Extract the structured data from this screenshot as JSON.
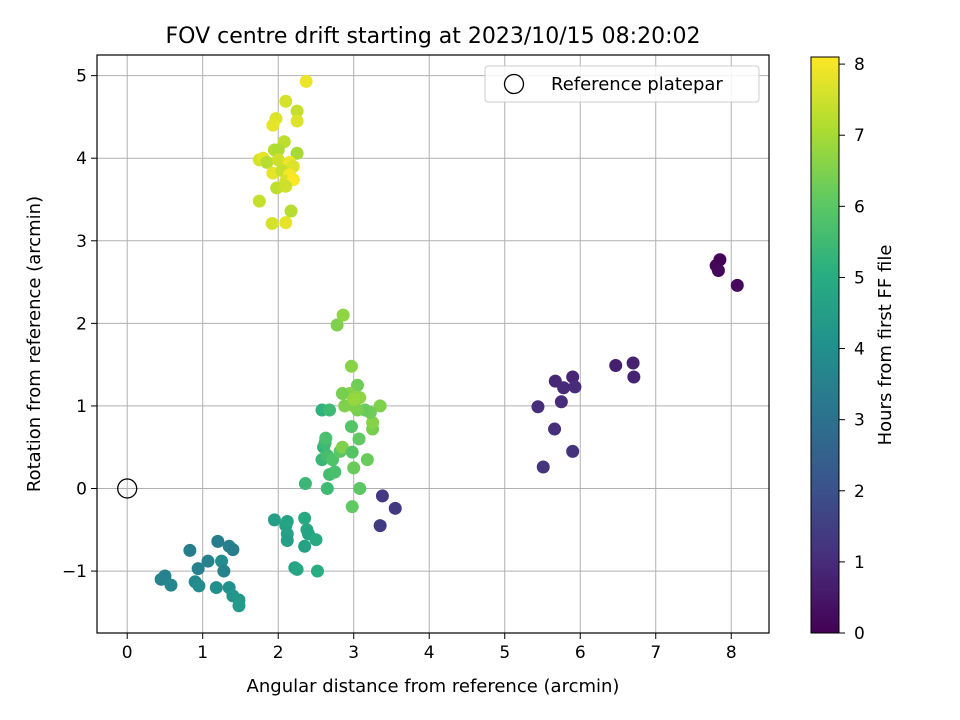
{
  "chart_data": {
    "type": "scatter",
    "title": "FOV centre drift starting at 2023/10/15 08:20:02",
    "xlabel": "Angular distance from reference (arcmin)",
    "ylabel": "Rotation from reference (arcmin)",
    "xlim": [
      -0.4,
      8.5
    ],
    "ylim": [
      -1.75,
      5.25
    ],
    "xticks": [
      0,
      1,
      2,
      3,
      4,
      5,
      6,
      7,
      8
    ],
    "yticks": [
      -1,
      0,
      1,
      2,
      3,
      4,
      5
    ],
    "grid": true,
    "legend": {
      "placement": "top-right",
      "entries": [
        "Reference platepar"
      ]
    },
    "reference_point": {
      "x": 0,
      "y": 0
    },
    "colorbar": {
      "label": "Hours from first FF file",
      "range": [
        0,
        8.1
      ],
      "ticks": [
        0,
        1,
        2,
        3,
        4,
        5,
        6,
        7,
        8
      ],
      "colormap": "viridis"
    },
    "points": [
      {
        "x": 7.85,
        "y": 2.77,
        "c": 0.05
      },
      {
        "x": 7.8,
        "y": 2.7,
        "c": 0.1
      },
      {
        "x": 7.83,
        "y": 2.64,
        "c": 0.15
      },
      {
        "x": 8.08,
        "y": 2.46,
        "c": 0.2
      },
      {
        "x": 6.47,
        "y": 1.49,
        "c": 0.7
      },
      {
        "x": 6.7,
        "y": 1.52,
        "c": 0.75
      },
      {
        "x": 6.71,
        "y": 1.35,
        "c": 0.8
      },
      {
        "x": 5.9,
        "y": 1.35,
        "c": 0.85
      },
      {
        "x": 5.67,
        "y": 1.3,
        "c": 0.9
      },
      {
        "x": 5.78,
        "y": 1.22,
        "c": 0.95
      },
      {
        "x": 5.93,
        "y": 1.23,
        "c": 1.0
      },
      {
        "x": 5.75,
        "y": 1.05,
        "c": 1.0
      },
      {
        "x": 5.44,
        "y": 0.99,
        "c": 1.05
      },
      {
        "x": 5.66,
        "y": 0.72,
        "c": 1.1
      },
      {
        "x": 5.9,
        "y": 0.45,
        "c": 1.15
      },
      {
        "x": 5.51,
        "y": 0.26,
        "c": 1.2
      },
      {
        "x": 3.38,
        "y": -0.09,
        "c": 1.3
      },
      {
        "x": 3.55,
        "y": -0.24,
        "c": 1.35
      },
      {
        "x": 3.35,
        "y": -0.45,
        "c": 1.4
      },
      {
        "x": 0.45,
        "y": -1.1,
        "c": 3.6
      },
      {
        "x": 0.5,
        "y": -1.06,
        "c": 3.6
      },
      {
        "x": 0.58,
        "y": -1.17,
        "c": 3.7
      },
      {
        "x": 0.83,
        "y": -0.75,
        "c": 3.4
      },
      {
        "x": 0.94,
        "y": -0.97,
        "c": 3.5
      },
      {
        "x": 0.9,
        "y": -1.13,
        "c": 3.8
      },
      {
        "x": 0.95,
        "y": -1.18,
        "c": 3.9
      },
      {
        "x": 1.07,
        "y": -0.88,
        "c": 3.6
      },
      {
        "x": 1.2,
        "y": -0.64,
        "c": 3.4
      },
      {
        "x": 1.25,
        "y": -0.88,
        "c": 3.9
      },
      {
        "x": 1.28,
        "y": -1.0,
        "c": 3.6
      },
      {
        "x": 1.18,
        "y": -1.2,
        "c": 4.0
      },
      {
        "x": 1.35,
        "y": -0.7,
        "c": 3.5
      },
      {
        "x": 1.4,
        "y": -0.74,
        "c": 3.4
      },
      {
        "x": 1.35,
        "y": -1.2,
        "c": 4.1
      },
      {
        "x": 1.4,
        "y": -1.3,
        "c": 4.2
      },
      {
        "x": 1.48,
        "y": -1.35,
        "c": 4.3
      },
      {
        "x": 1.48,
        "y": -1.42,
        "c": 4.4
      },
      {
        "x": 1.95,
        "y": -0.38,
        "c": 4.5
      },
      {
        "x": 2.1,
        "y": -0.45,
        "c": 4.6
      },
      {
        "x": 2.12,
        "y": -0.4,
        "c": 4.7
      },
      {
        "x": 2.12,
        "y": -0.55,
        "c": 4.6
      },
      {
        "x": 2.12,
        "y": -0.63,
        "c": 4.5
      },
      {
        "x": 2.35,
        "y": -0.36,
        "c": 4.9
      },
      {
        "x": 2.38,
        "y": -0.5,
        "c": 4.8
      },
      {
        "x": 2.4,
        "y": -0.55,
        "c": 4.7
      },
      {
        "x": 2.5,
        "y": -0.62,
        "c": 4.9
      },
      {
        "x": 2.35,
        "y": -0.7,
        "c": 4.6
      },
      {
        "x": 2.22,
        "y": -0.96,
        "c": 4.6
      },
      {
        "x": 2.25,
        "y": -0.98,
        "c": 4.8
      },
      {
        "x": 2.52,
        "y": -1.0,
        "c": 5.0
      },
      {
        "x": 2.36,
        "y": 0.06,
        "c": 5.4
      },
      {
        "x": 2.58,
        "y": 0.95,
        "c": 5.2
      },
      {
        "x": 2.68,
        "y": 0.95,
        "c": 5.5
      },
      {
        "x": 2.6,
        "y": 0.5,
        "c": 5.3
      },
      {
        "x": 2.62,
        "y": 0.55,
        "c": 5.5
      },
      {
        "x": 2.63,
        "y": 0.61,
        "c": 5.7
      },
      {
        "x": 2.58,
        "y": 0.35,
        "c": 5.4
      },
      {
        "x": 2.65,
        "y": 0.4,
        "c": 5.6
      },
      {
        "x": 2.72,
        "y": 0.35,
        "c": 5.8
      },
      {
        "x": 2.68,
        "y": 0.17,
        "c": 5.6
      },
      {
        "x": 2.75,
        "y": 0.2,
        "c": 5.7
      },
      {
        "x": 2.65,
        "y": 0.0,
        "c": 5.5
      },
      {
        "x": 2.82,
        "y": 0.45,
        "c": 6.0
      },
      {
        "x": 2.85,
        "y": 0.5,
        "c": 6.5
      },
      {
        "x": 2.98,
        "y": 0.44,
        "c": 5.9
      },
      {
        "x": 3.0,
        "y": 0.25,
        "c": 6.2
      },
      {
        "x": 3.08,
        "y": 0.0,
        "c": 6.0
      },
      {
        "x": 2.98,
        "y": -0.22,
        "c": 6.1
      },
      {
        "x": 2.97,
        "y": 0.75,
        "c": 5.9
      },
      {
        "x": 3.07,
        "y": 0.6,
        "c": 6.1
      },
      {
        "x": 3.18,
        "y": 0.35,
        "c": 6.2
      },
      {
        "x": 3.25,
        "y": 0.72,
        "c": 6.4
      },
      {
        "x": 3.25,
        "y": 0.8,
        "c": 6.6
      },
      {
        "x": 3.35,
        "y": 1.0,
        "c": 6.5
      },
      {
        "x": 3.22,
        "y": 0.92,
        "c": 6.3
      },
      {
        "x": 3.15,
        "y": 0.95,
        "c": 6.2
      },
      {
        "x": 3.05,
        "y": 0.95,
        "c": 6.4
      },
      {
        "x": 3.0,
        "y": 1.0,
        "c": 6.5
      },
      {
        "x": 3.08,
        "y": 1.1,
        "c": 6.7
      },
      {
        "x": 3.05,
        "y": 1.25,
        "c": 6.3
      },
      {
        "x": 2.95,
        "y": 1.15,
        "c": 6.6
      },
      {
        "x": 2.88,
        "y": 1.0,
        "c": 6.5
      },
      {
        "x": 2.85,
        "y": 1.15,
        "c": 6.4
      },
      {
        "x": 3.0,
        "y": 1.08,
        "c": 6.8
      },
      {
        "x": 2.97,
        "y": 1.48,
        "c": 6.6
      },
      {
        "x": 2.78,
        "y": 1.98,
        "c": 6.5
      },
      {
        "x": 2.86,
        "y": 2.1,
        "c": 6.7
      },
      {
        "x": 2.37,
        "y": 4.93,
        "c": 7.9
      },
      {
        "x": 2.1,
        "y": 4.69,
        "c": 7.6
      },
      {
        "x": 2.25,
        "y": 4.57,
        "c": 7.4
      },
      {
        "x": 1.97,
        "y": 4.48,
        "c": 7.7
      },
      {
        "x": 1.93,
        "y": 4.4,
        "c": 7.8
      },
      {
        "x": 2.25,
        "y": 4.45,
        "c": 7.7
      },
      {
        "x": 2.08,
        "y": 4.2,
        "c": 7.3
      },
      {
        "x": 1.95,
        "y": 4.1,
        "c": 7.2
      },
      {
        "x": 2.0,
        "y": 4.1,
        "c": 7.1
      },
      {
        "x": 2.25,
        "y": 4.06,
        "c": 7.0
      },
      {
        "x": 1.75,
        "y": 3.98,
        "c": 7.6
      },
      {
        "x": 1.8,
        "y": 4.0,
        "c": 7.8
      },
      {
        "x": 1.85,
        "y": 3.95,
        "c": 7.2
      },
      {
        "x": 2.0,
        "y": 3.98,
        "c": 7.5
      },
      {
        "x": 2.15,
        "y": 3.95,
        "c": 7.9
      },
      {
        "x": 2.2,
        "y": 3.9,
        "c": 7.7
      },
      {
        "x": 1.93,
        "y": 3.82,
        "c": 7.8
      },
      {
        "x": 2.05,
        "y": 3.85,
        "c": 7.4
      },
      {
        "x": 2.15,
        "y": 3.8,
        "c": 8.0
      },
      {
        "x": 2.1,
        "y": 3.72,
        "c": 7.6
      },
      {
        "x": 2.2,
        "y": 3.74,
        "c": 8.1
      },
      {
        "x": 1.98,
        "y": 3.64,
        "c": 7.3
      },
      {
        "x": 2.1,
        "y": 3.66,
        "c": 7.5
      },
      {
        "x": 1.75,
        "y": 3.48,
        "c": 7.4
      },
      {
        "x": 2.17,
        "y": 3.36,
        "c": 7.2
      },
      {
        "x": 1.92,
        "y": 3.21,
        "c": 7.6
      },
      {
        "x": 2.1,
        "y": 3.22,
        "c": 7.8
      }
    ]
  }
}
